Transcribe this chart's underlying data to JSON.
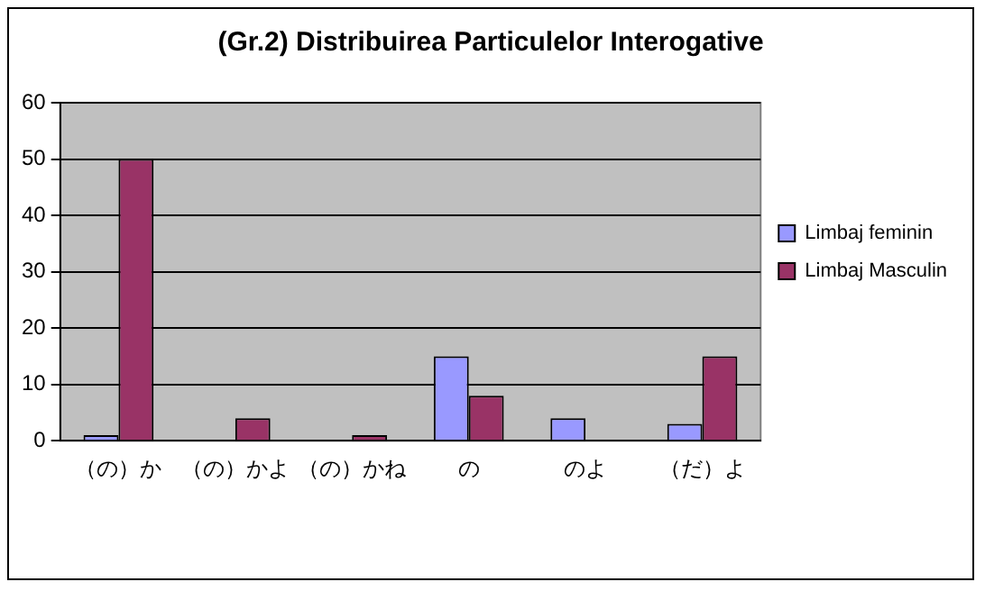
{
  "chart_data": {
    "type": "bar",
    "title": "(Gr.2) Distribuirea Particulelor Interogative",
    "categories": [
      "（の）か",
      "（の）かよ",
      "（の）かね",
      "の",
      "のよ",
      "（だ）よ"
    ],
    "series": [
      {
        "name": "Limbaj feminin",
        "color": "#9999ff",
        "values": [
          1,
          0,
          0,
          15,
          4,
          3
        ]
      },
      {
        "name": "Limbaj Masculin",
        "color": "#993366",
        "values": [
          50,
          4,
          1,
          8,
          0,
          15
        ]
      }
    ],
    "ylim": [
      0,
      60
    ],
    "yticks": [
      0,
      10,
      20,
      30,
      40,
      50,
      60
    ],
    "grid": "y",
    "legend": "right"
  }
}
